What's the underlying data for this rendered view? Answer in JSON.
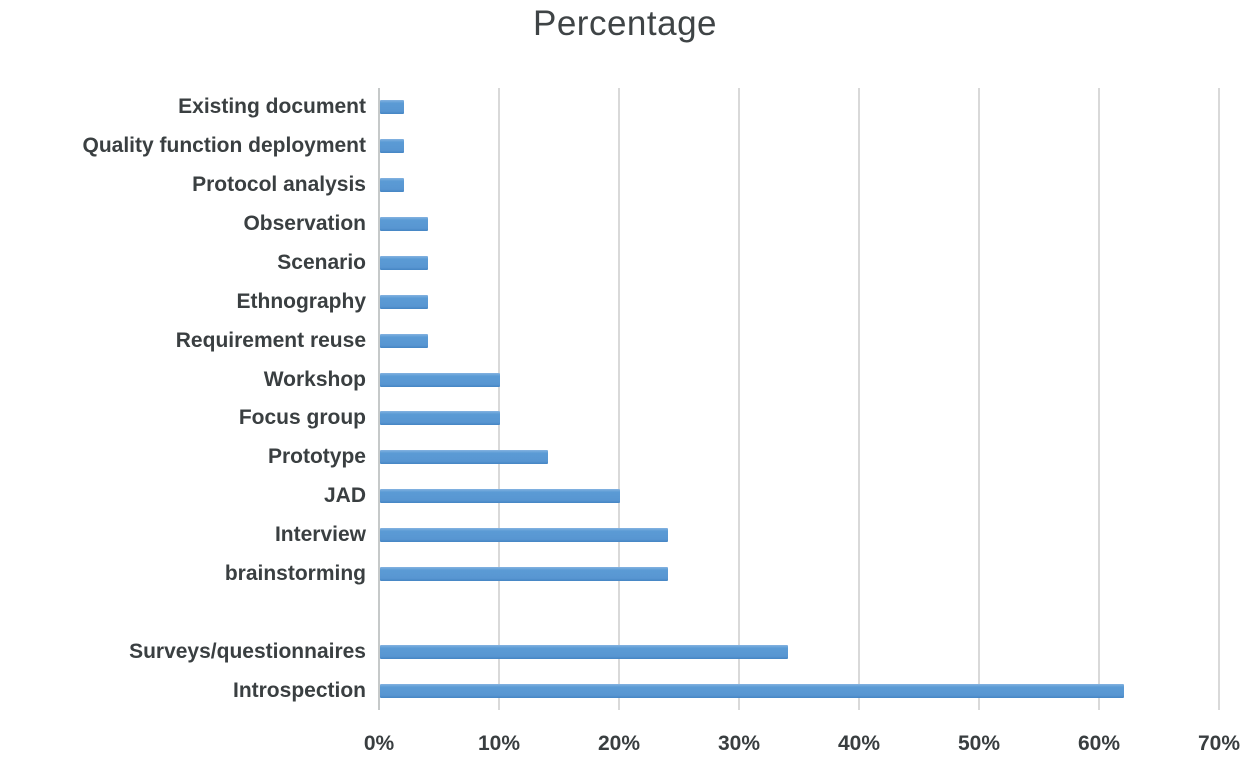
{
  "chart_data": {
    "type": "bar",
    "orientation": "horizontal",
    "title": "Percentage",
    "xlabel": "",
    "ylabel": "",
    "xlim": [
      0,
      70
    ],
    "x_tick_values": [
      0,
      10,
      20,
      30,
      40,
      50,
      60,
      70
    ],
    "x_tick_labels": [
      "0%",
      "10%",
      "20%",
      "30%",
      "40%",
      "50%",
      "60%",
      "70%"
    ],
    "grid": "vertical-only",
    "legend_position": "none",
    "bar_color": "#5b9bd5",
    "gridline_color": "#d9d9d9",
    "text_color": "#3a3f41",
    "categories": [
      "Existing document",
      "Quality function deployment",
      "Protocol analysis",
      "Observation",
      "Scenario",
      "Ethnography",
      "Requirement reuse",
      "Workshop",
      "Focus group",
      "Prototype",
      "JAD",
      "Interview",
      "brainstorming",
      "",
      "Surveys/questionnaires",
      "Introspection"
    ],
    "values": [
      2,
      2,
      2,
      4,
      4,
      4,
      4,
      10,
      10,
      14,
      20,
      24,
      24,
      null,
      34,
      62
    ]
  }
}
